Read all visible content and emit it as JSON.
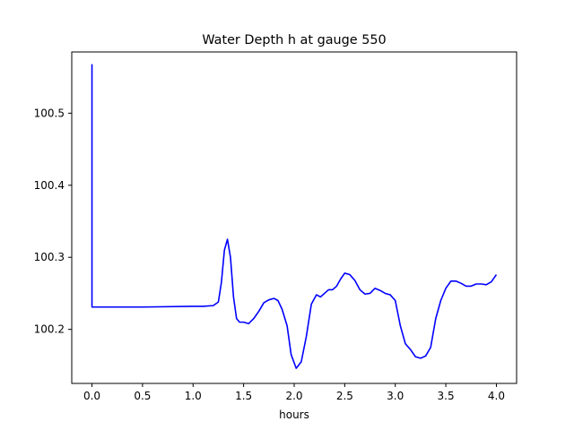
{
  "chart_data": {
    "type": "line",
    "title": "Water Depth h at gauge 550",
    "xlabel": "hours",
    "ylabel": "",
    "xlim": [
      -0.2,
      4.2
    ],
    "ylim": [
      100.125,
      100.585
    ],
    "xticks": [
      0.0,
      0.5,
      1.0,
      1.5,
      2.0,
      2.5,
      3.0,
      3.5,
      4.0
    ],
    "xtick_labels": [
      "0.0",
      "0.5",
      "1.0",
      "1.5",
      "2.0",
      "2.5",
      "3.0",
      "3.5",
      "4.0"
    ],
    "yticks": [
      100.2,
      100.3,
      100.4,
      100.5
    ],
    "ytick_labels": [
      "100.2",
      "100.3",
      "100.4",
      "100.5"
    ],
    "grid": false,
    "series": [
      {
        "color": "#0000ff",
        "x": [
          0.0,
          0.0,
          0.01,
          0.5,
          1.0,
          1.1,
          1.2,
          1.25,
          1.28,
          1.31,
          1.34,
          1.37,
          1.4,
          1.43,
          1.46,
          1.5,
          1.55,
          1.6,
          1.65,
          1.7,
          1.75,
          1.8,
          1.84,
          1.88,
          1.93,
          1.97,
          2.02,
          2.07,
          2.12,
          2.17,
          2.22,
          2.26,
          2.3,
          2.34,
          2.38,
          2.42,
          2.46,
          2.5,
          2.55,
          2.6,
          2.65,
          2.7,
          2.75,
          2.8,
          2.85,
          2.9,
          2.95,
          3.0,
          3.05,
          3.1,
          3.15,
          3.2,
          3.25,
          3.3,
          3.35,
          3.4,
          3.45,
          3.5,
          3.55,
          3.6,
          3.65,
          3.7,
          3.75,
          3.8,
          3.85,
          3.9,
          3.95,
          4.0
        ],
        "y": [
          100.568,
          100.231,
          100.231,
          100.231,
          100.232,
          100.232,
          100.233,
          100.238,
          100.265,
          100.31,
          100.325,
          100.3,
          100.245,
          100.215,
          100.21,
          100.21,
          100.208,
          100.215,
          100.225,
          100.237,
          100.241,
          100.243,
          100.24,
          100.228,
          100.205,
          100.165,
          100.146,
          100.155,
          100.19,
          100.235,
          100.248,
          100.245,
          100.25,
          100.255,
          100.255,
          100.26,
          100.27,
          100.278,
          100.276,
          100.268,
          100.255,
          100.249,
          100.25,
          100.257,
          100.254,
          100.25,
          100.248,
          100.24,
          100.205,
          100.18,
          100.172,
          100.162,
          100.16,
          100.163,
          100.175,
          100.215,
          100.24,
          100.257,
          100.267,
          100.267,
          100.264,
          100.26,
          100.26,
          100.263,
          100.263,
          100.262,
          100.266,
          100.276
        ]
      }
    ]
  }
}
